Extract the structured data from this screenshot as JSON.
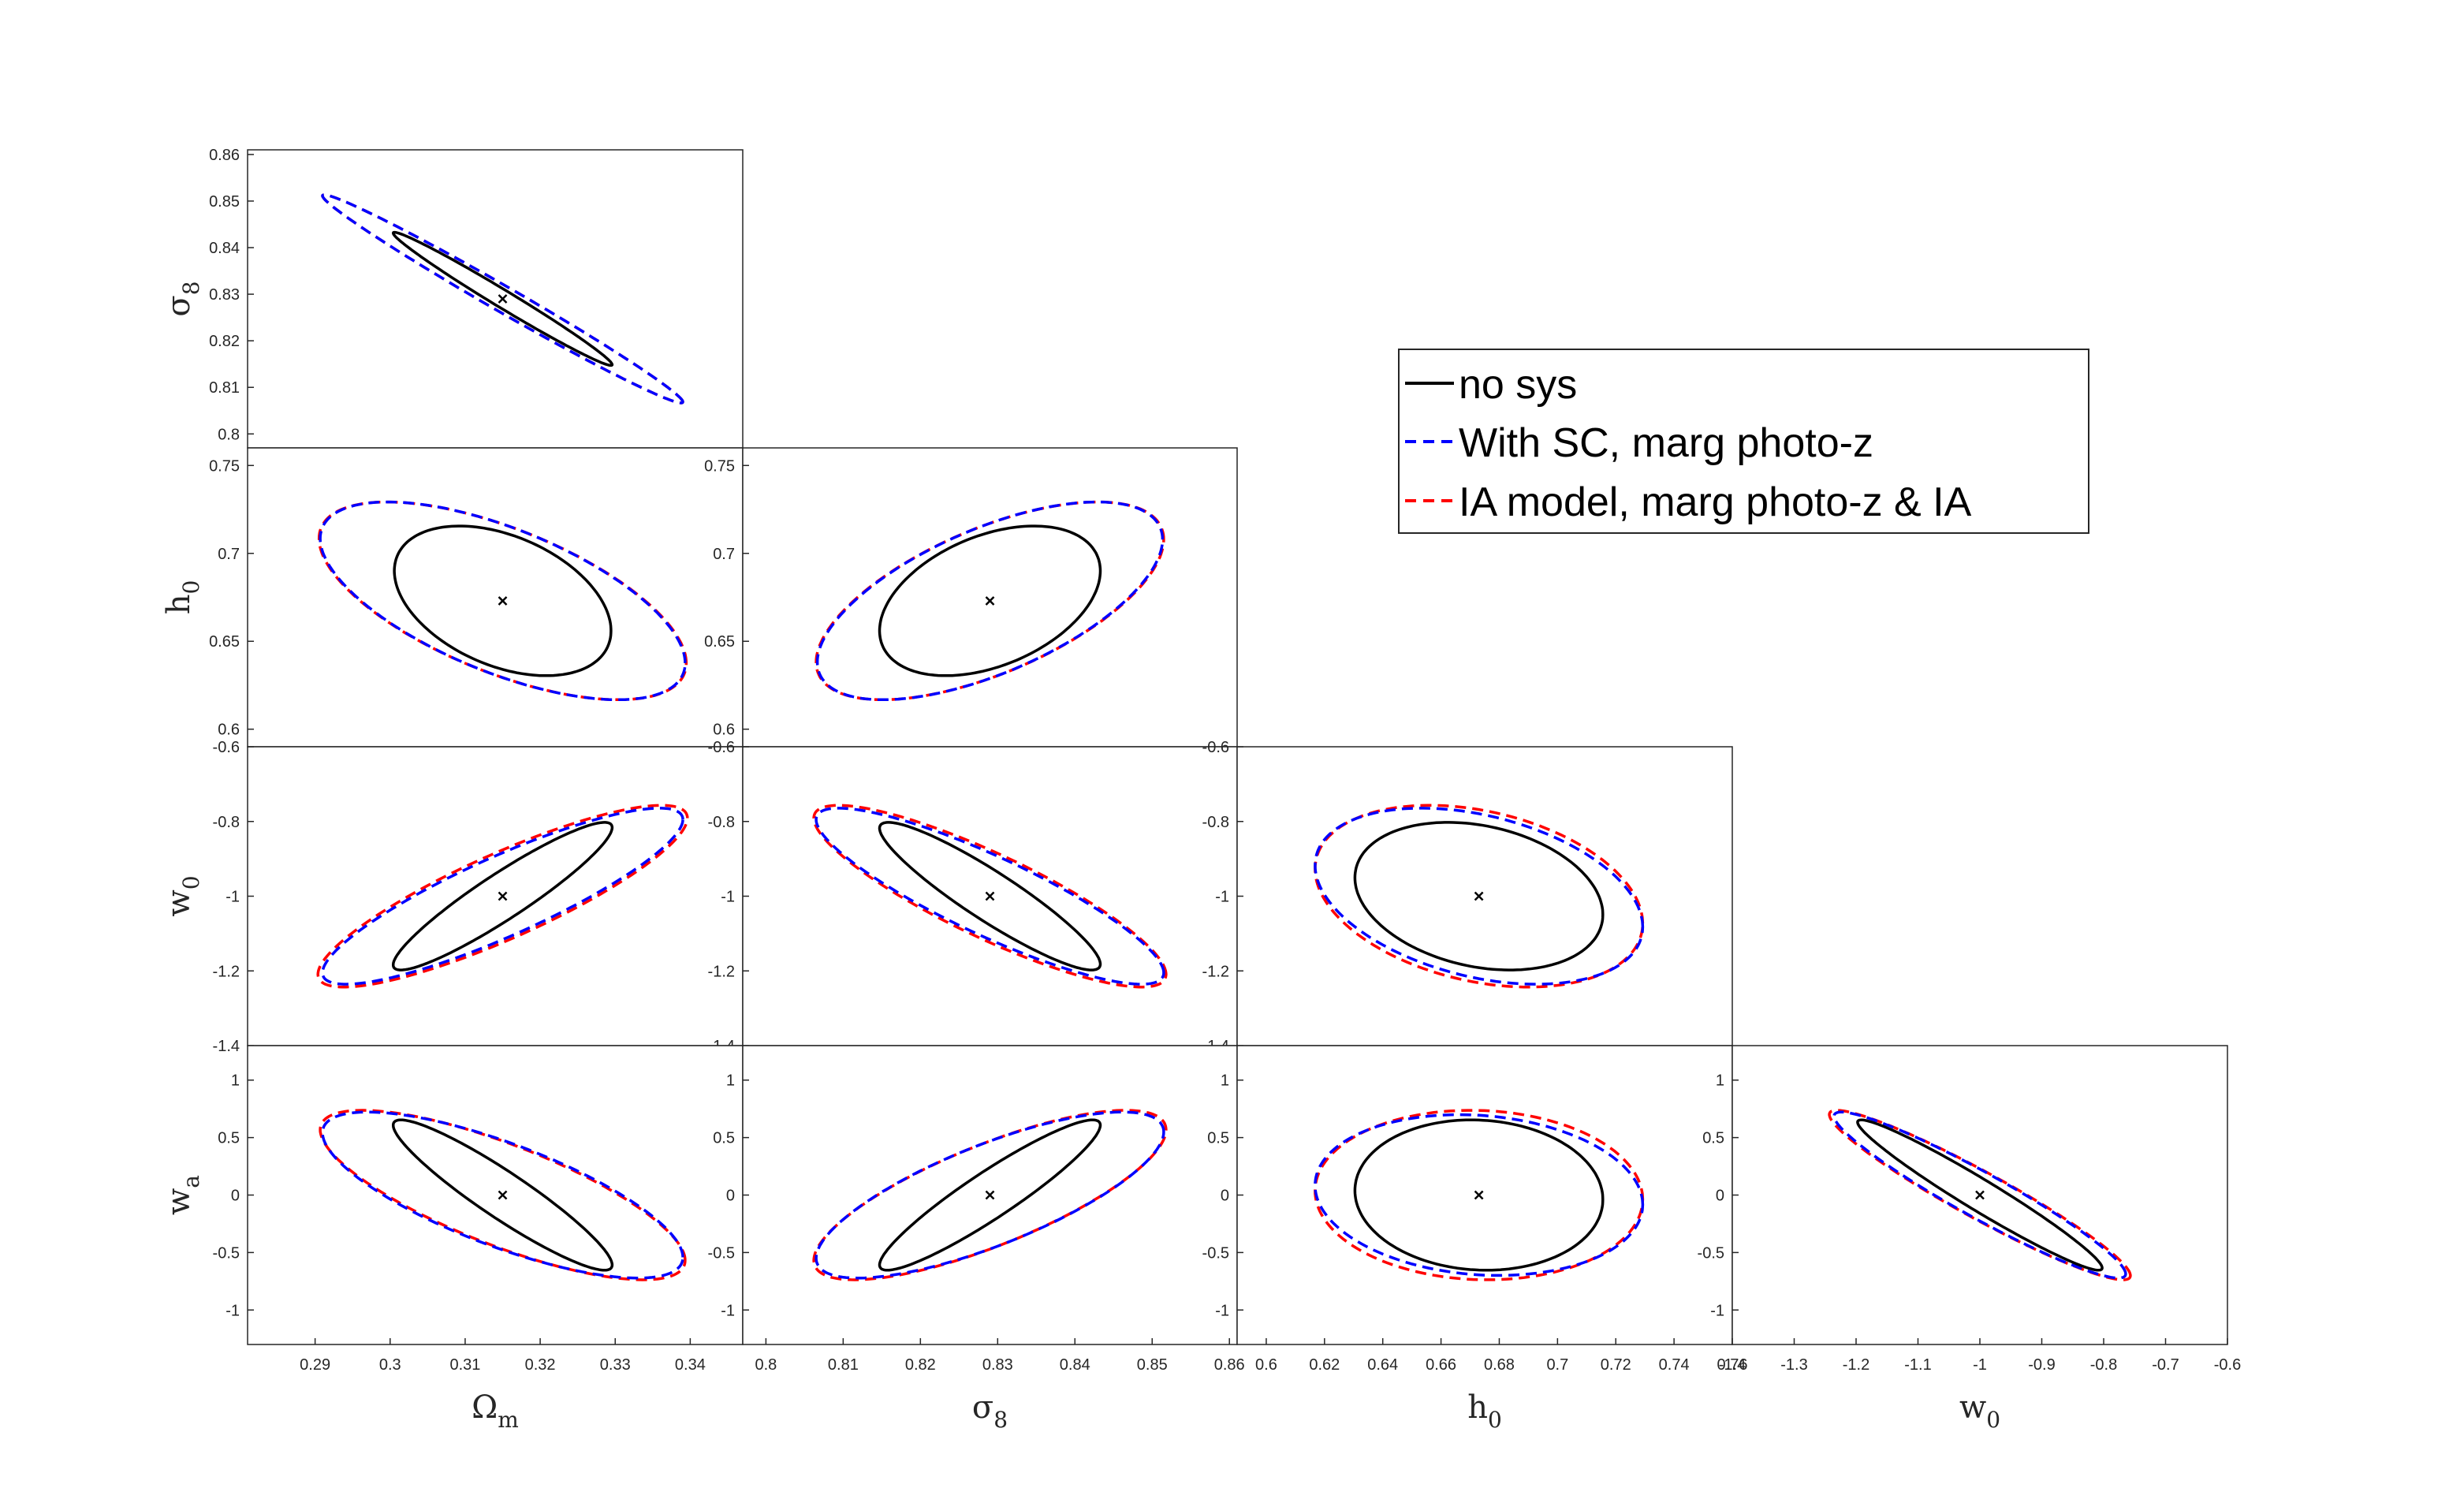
{
  "chart_data": {
    "type": "scatter",
    "subtype": "fisher-ellipse-triangle",
    "grid": false,
    "legend_placement": "top-right",
    "center": {
      "Om": 0.315,
      "s8": 0.829,
      "h0": 0.673,
      "w0": -1,
      "wa": 0
    },
    "marker": "x",
    "parameters": {
      "Om": {
        "label": "Ω",
        "sub": "m",
        "ticks": [
          "0.29",
          "0.3",
          "0.31",
          "0.32",
          "0.33",
          "0.34"
        ],
        "lim": [
          0.281,
          0.347
        ]
      },
      "s8": {
        "label": "σ",
        "sub": "8",
        "ticks_x": [
          "0.8",
          "0.81",
          "0.82",
          "0.83",
          "0.84",
          "0.85",
          "0.86"
        ],
        "ticks_y": [
          "0.8",
          "0.81",
          "0.82",
          "0.83",
          "0.84",
          "0.85",
          "0.86"
        ],
        "lim": [
          0.797,
          0.861
        ]
      },
      "h0": {
        "label": "h",
        "sub": "0",
        "ticks_x": [
          "0.6",
          "0.62",
          "0.64",
          "0.66",
          "0.68",
          "0.7",
          "0.72",
          "0.74",
          "0.76"
        ],
        "ticks_y": [
          "0.6",
          "0.65",
          "0.7",
          "0.75"
        ],
        "lim": [
          0.59,
          0.76
        ]
      },
      "w0": {
        "label": "w",
        "sub": "0",
        "ticks_x": [
          "-1.4",
          "-1.3",
          "-1.2",
          "-1.1",
          "-1",
          "-0.9",
          "-0.8",
          "-0.7",
          "-0.6"
        ],
        "ticks_y": [
          "-1.4",
          "-1.2",
          "-1",
          "-0.8",
          "-0.6"
        ],
        "lim": [
          -1.4,
          -0.6
        ]
      },
      "wa": {
        "label": "w",
        "sub": "a",
        "ticks_y": [
          "-1",
          "-0.5",
          "0",
          "0.5",
          "1"
        ],
        "lim": [
          -1.3,
          1.3
        ]
      }
    },
    "series": [
      {
        "name": "no sys",
        "color": "#000000",
        "style": "solid"
      },
      {
        "name": "With SC, marg photo-z",
        "color": "#0000ff",
        "style": "dashed"
      },
      {
        "name": "IA model, marg photo-z & IA",
        "color": "#ff0000",
        "style": "dashed"
      }
    ],
    "panels": [
      {
        "id": "Om-s8",
        "x": "Om",
        "y": "s8",
        "ellipses": [
          {
            "series": 0,
            "sx": 0.0096,
            "sy": 0.0094,
            "rho": -0.988
          },
          {
            "series": 1,
            "sx": 0.0158,
            "sy": 0.0147,
            "rho": -0.99
          },
          {
            "series": 2,
            "sx": 0.0158,
            "sy": 0.0147,
            "rho": -0.99
          }
        ]
      },
      {
        "id": "Om-h0",
        "x": "Om",
        "y": "h0",
        "ellipses": [
          {
            "series": 0,
            "sx": 0.0095,
            "sy": 0.028,
            "rho": -0.4
          },
          {
            "series": 1,
            "sx": 0.016,
            "sy": 0.037,
            "rho": -0.63
          },
          {
            "series": 2,
            "sx": 0.0161,
            "sy": 0.037,
            "rho": -0.63
          }
        ]
      },
      {
        "id": "s8-h0",
        "x": "s8",
        "y": "h0",
        "ellipses": [
          {
            "series": 0,
            "sx": 0.0094,
            "sy": 0.028,
            "rho": 0.4
          },
          {
            "series": 1,
            "sx": 0.0147,
            "sy": 0.037,
            "rho": 0.62
          },
          {
            "series": 2,
            "sx": 0.0148,
            "sy": 0.037,
            "rho": 0.62
          }
        ]
      },
      {
        "id": "Om-w0",
        "x": "Om",
        "y": "w0",
        "ellipses": [
          {
            "series": 0,
            "sx": 0.0096,
            "sy": 0.13,
            "rho": 0.93
          },
          {
            "series": 1,
            "sx": 0.0158,
            "sy": 0.155,
            "rho": 0.87
          },
          {
            "series": 2,
            "sx": 0.0162,
            "sy": 0.16,
            "rho": 0.86
          }
        ]
      },
      {
        "id": "s8-w0",
        "x": "s8",
        "y": "w0",
        "ellipses": [
          {
            "series": 0,
            "sx": 0.0094,
            "sy": 0.13,
            "rho": -0.92
          },
          {
            "series": 1,
            "sx": 0.0148,
            "sy": 0.155,
            "rho": -0.87
          },
          {
            "series": 2,
            "sx": 0.015,
            "sy": 0.16,
            "rho": -0.86
          }
        ]
      },
      {
        "id": "h0-w0",
        "x": "h0",
        "y": "w0",
        "ellipses": [
          {
            "series": 0,
            "sx": 0.028,
            "sy": 0.13,
            "rho": -0.25
          },
          {
            "series": 1,
            "sx": 0.037,
            "sy": 0.155,
            "rho": -0.35
          },
          {
            "series": 2,
            "sx": 0.037,
            "sy": 0.16,
            "rho": -0.3
          }
        ]
      },
      {
        "id": "Om-wa",
        "x": "Om",
        "y": "wa",
        "ellipses": [
          {
            "series": 0,
            "sx": 0.0096,
            "sy": 0.43,
            "rho": -0.93
          },
          {
            "series": 1,
            "sx": 0.0158,
            "sy": 0.475,
            "rho": -0.75
          },
          {
            "series": 2,
            "sx": 0.016,
            "sy": 0.485,
            "rho": -0.77
          }
        ]
      },
      {
        "id": "s8-wa",
        "x": "s8",
        "y": "wa",
        "ellipses": [
          {
            "series": 0,
            "sx": 0.0094,
            "sy": 0.43,
            "rho": 0.93
          },
          {
            "series": 1,
            "sx": 0.0148,
            "sy": 0.475,
            "rho": 0.76
          },
          {
            "series": 2,
            "sx": 0.015,
            "sy": 0.485,
            "rho": 0.77
          }
        ]
      },
      {
        "id": "h0-wa",
        "x": "h0",
        "y": "wa",
        "ellipses": [
          {
            "series": 0,
            "sx": 0.028,
            "sy": 0.43,
            "rho": -0.06
          },
          {
            "series": 1,
            "sx": 0.037,
            "sy": 0.46,
            "rho": -0.12
          },
          {
            "series": 2,
            "sx": 0.037,
            "sy": 0.485,
            "rho": -0.05
          }
        ]
      },
      {
        "id": "w0-wa",
        "x": "w0",
        "y": "wa",
        "ellipses": [
          {
            "series": 0,
            "sx": 0.13,
            "sy": 0.43,
            "rho": -0.97
          },
          {
            "series": 1,
            "sx": 0.155,
            "sy": 0.475,
            "rho": -0.95
          },
          {
            "series": 2,
            "sx": 0.16,
            "sy": 0.485,
            "rho": -0.95
          }
        ]
      }
    ]
  }
}
